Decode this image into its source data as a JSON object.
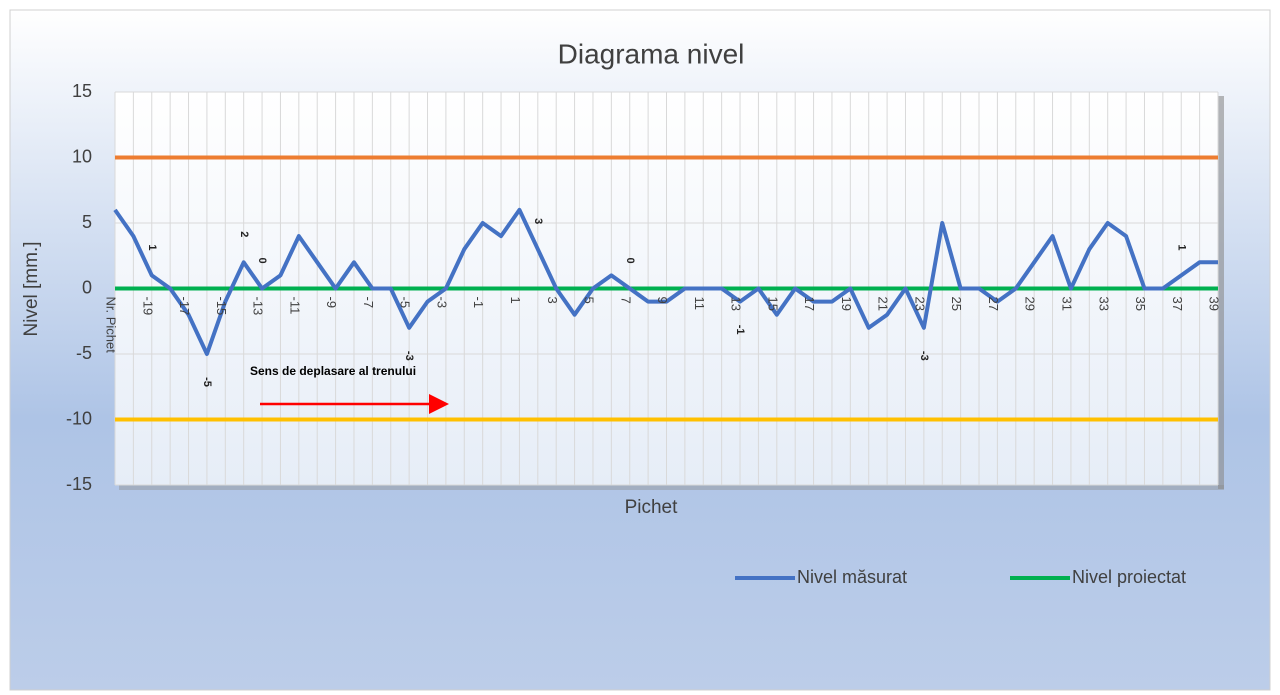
{
  "chart_data": {
    "type": "line",
    "title": "Diagrama nivel",
    "x_label": "Pichet",
    "y_label": "Nivel [mm.]",
    "annotation": "Sens de deplasare al trenului",
    "categories": [
      "Nr. Pichet",
      null,
      "-19",
      null,
      "-17",
      null,
      "-15",
      null,
      "-13",
      null,
      "-11",
      null,
      "-9",
      null,
      "-7",
      null,
      "-5",
      null,
      "-3",
      null,
      "-1",
      null,
      "1",
      null,
      "3",
      null,
      "5",
      null,
      "7",
      null,
      "9",
      null,
      "11",
      null,
      "13",
      null,
      "15",
      null,
      "17",
      null,
      "19",
      null,
      "21",
      null,
      "23",
      null,
      "25",
      null,
      "27",
      null,
      "29",
      null,
      "31",
      null,
      "33",
      null,
      "35",
      null,
      "37",
      null,
      "39"
    ],
    "series": [
      {
        "name": "Nivel măsurat",
        "color": "#4472c4",
        "values": [
          6,
          4,
          1,
          0,
          -2,
          -5,
          -1,
          2,
          0,
          1,
          4,
          2,
          0,
          2,
          0,
          0,
          -3,
          -1,
          0,
          3,
          5,
          4,
          6,
          3,
          0,
          -2,
          0,
          1,
          0,
          -1,
          -1,
          0,
          0,
          0,
          -1,
          0,
          -2,
          0,
          -1,
          -1,
          0,
          -3,
          -2,
          0,
          -3,
          5,
          0,
          0,
          -1,
          0,
          2,
          4,
          0,
          3,
          5,
          4,
          0,
          0,
          1,
          2,
          2
        ],
        "value_labels": [
          null,
          null,
          "1",
          null,
          null,
          "-5",
          null,
          "2",
          "0",
          null,
          null,
          null,
          null,
          null,
          null,
          null,
          "-3",
          null,
          null,
          null,
          null,
          null,
          null,
          "3",
          null,
          null,
          null,
          null,
          "0",
          null,
          null,
          null,
          null,
          null,
          "-1",
          null,
          null,
          null,
          null,
          null,
          null,
          null,
          null,
          null,
          "-3",
          null,
          null,
          null,
          null,
          null,
          null,
          null,
          null,
          null,
          null,
          null,
          null,
          null,
          "1",
          null,
          null
        ]
      },
      {
        "name": "Nivel proiectat",
        "color": "#00b050",
        "values": [
          0,
          0,
          0,
          0,
          0,
          0,
          0,
          0,
          0,
          0,
          0,
          0,
          0,
          0,
          0,
          0,
          0,
          0,
          0,
          0,
          0,
          0,
          0,
          0,
          0,
          0,
          0,
          0,
          0,
          0,
          0,
          0,
          0,
          0,
          0,
          0,
          0,
          0,
          0,
          0,
          0,
          0,
          0,
          0,
          0,
          0,
          0,
          0,
          0,
          0,
          0,
          0,
          0,
          0,
          0,
          0,
          0,
          0,
          0,
          0,
          0
        ]
      },
      {
        "color": "#ed7d31",
        "values": [
          10,
          10,
          10,
          10,
          10,
          10,
          10,
          10,
          10,
          10,
          10,
          10,
          10,
          10,
          10,
          10,
          10,
          10,
          10,
          10,
          10,
          10,
          10,
          10,
          10,
          10,
          10,
          10,
          10,
          10,
          10,
          10,
          10,
          10,
          10,
          10,
          10,
          10,
          10,
          10,
          10,
          10,
          10,
          10,
          10,
          10,
          10,
          10,
          10,
          10,
          10,
          10,
          10,
          10,
          10,
          10,
          10,
          10,
          10,
          10,
          10
        ]
      },
      {
        "color": "#ffc000",
        "values": [
          -10,
          -10,
          -10,
          -10,
          -10,
          -10,
          -10,
          -10,
          -10,
          -10,
          -10,
          -10,
          -10,
          -10,
          -10,
          -10,
          -10,
          -10,
          -10,
          -10,
          -10,
          -10,
          -10,
          -10,
          -10,
          -10,
          -10,
          -10,
          -10,
          -10,
          -10,
          -10,
          -10,
          -10,
          -10,
          -10,
          -10,
          -10,
          -10,
          -10,
          -10,
          -10,
          -10,
          -10,
          -10,
          -10,
          -10,
          -10,
          -10,
          -10,
          -10,
          -10,
          -10,
          -10,
          -10,
          -10,
          -10,
          -10,
          -10,
          -10,
          -10
        ]
      }
    ],
    "ylim": [
      -15,
      15
    ],
    "yticks": [
      -15,
      -10,
      -5,
      0,
      5,
      10,
      15
    ],
    "grid": true
  }
}
